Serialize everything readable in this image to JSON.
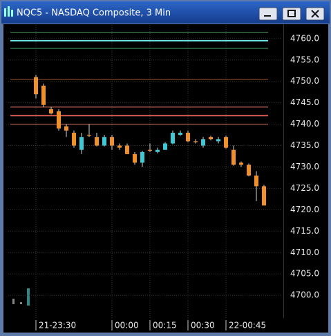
{
  "window_title": "NQC5 - NASDAQ Composite, 3 Min",
  "chart_data": {
    "type": "candlestick",
    "categories": [
      "21-23:30",
      null,
      null,
      null,
      null,
      null,
      null,
      null,
      null,
      null,
      "00:00",
      null,
      null,
      null,
      null,
      "00:15",
      null,
      null,
      null,
      null,
      "00:30",
      null,
      null,
      null,
      null,
      "22-00:45",
      null,
      null,
      null,
      null,
      null
    ],
    "series": [
      {
        "up_color": "#3cc8d4",
        "down_color": "#f0902c",
        "open": [
          4751,
          4749,
          4743.5,
          4743,
          4739.5,
          4738,
          4734,
          4737.5,
          4737,
          4735,
          4737,
          4735,
          4735,
          4733,
          4731,
          4734,
          4733.5,
          4734,
          4735.5,
          4737.5,
          4738,
          4736,
          4735,
          4737,
          4736,
          4737,
          4734,
          4731,
          4730.5,
          4728,
          4725.5
        ],
        "high": [
          4751.5,
          4749.5,
          4744,
          4743.5,
          4740,
          4738.5,
          4738,
          4740,
          4738,
          4737.5,
          4737.5,
          4735.5,
          4735.5,
          4733.5,
          4733.8,
          4735.5,
          4734.5,
          4735.8,
          4738.5,
          4738.5,
          4738.5,
          4736.5,
          4737,
          4737.3,
          4737,
          4737.3,
          4735,
          4731.3,
          4730.8,
          4729,
          4725.8
        ],
        "low": [
          4746,
          4744,
          4742.3,
          4738.5,
          4737,
          4734.5,
          4733,
          4737,
          4734.8,
          4734.8,
          4734,
          4734,
          4733,
          4730.5,
          4730,
          4733.5,
          4733.2,
          4734,
          4735.3,
          4737.3,
          4735.8,
          4735.5,
          4734.5,
          4736.2,
          4735.5,
          4734.3,
          4730.3,
          4730,
          4727.8,
          4722,
          4721
        ],
        "close": [
          4747,
          4744.5,
          4742.5,
          4739,
          4738.5,
          4735,
          4737,
          4737.3,
          4735,
          4737,
          4735,
          4734.5,
          4733,
          4731,
          4733.5,
          4733.8,
          4734,
          4735.5,
          4738,
          4738,
          4736,
          4735.8,
          4736.5,
          4736.5,
          4736.5,
          4734.5,
          4730.5,
          4730.5,
          4728,
          4725.5,
          4721
        ]
      }
    ],
    "levels": [
      {
        "value": 4761.5,
        "color": "#4aa860",
        "width": 1
      },
      {
        "value": 4759.5,
        "color": "#6fe6e8",
        "width": 2
      },
      {
        "value": 4757.7,
        "color": "#4aa860",
        "width": 1
      },
      {
        "value": 4750.5,
        "color": "#a05a30",
        "width": 1
      },
      {
        "value": 4744,
        "color": "#e07a60",
        "width": 1
      },
      {
        "value": 4742,
        "color": "#e05a50",
        "width": 2
      },
      {
        "value": 4740,
        "color": "#e07a60",
        "width": 1
      }
    ],
    "ylim": [
      4694.7,
      4763.2
    ],
    "yticks": [
      {
        "value": 4700,
        "label": "4700.0"
      },
      {
        "value": 4705,
        "label": "4705.0"
      },
      {
        "value": 4710,
        "label": "4710.0"
      },
      {
        "value": 4715,
        "label": "4715.0"
      },
      {
        "value": 4720,
        "label": "4720.0"
      },
      {
        "value": 4725,
        "label": "4725.0"
      },
      {
        "value": 4730,
        "label": "4730.0"
      },
      {
        "value": 4735,
        "label": "4735.0"
      },
      {
        "value": 4740,
        "label": "4740.0"
      },
      {
        "value": 4745,
        "label": "4745.0"
      },
      {
        "value": 4750,
        "label": "4750.0"
      },
      {
        "value": 4755,
        "label": "4755.0"
      },
      {
        "value": 4760,
        "label": "4760.0"
      }
    ],
    "grid": true
  }
}
